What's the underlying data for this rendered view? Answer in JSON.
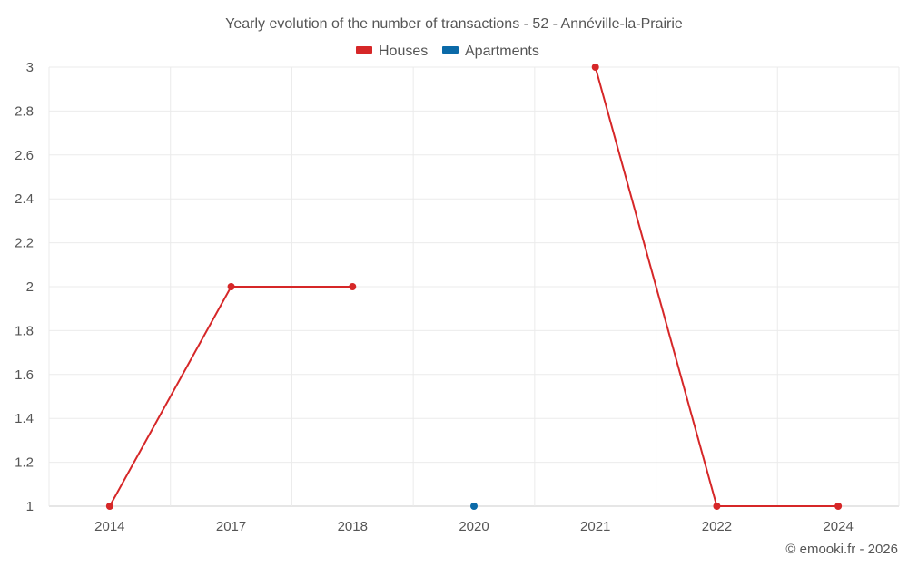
{
  "chart_data": {
    "type": "line",
    "title": "Yearly evolution of the number of transactions - 52 - Annéville-la-Prairie",
    "categories": [
      "2014",
      "2017",
      "2018",
      "2020",
      "2021",
      "2022",
      "2024"
    ],
    "series": [
      {
        "name": "Houses",
        "color": "#d62728",
        "values": [
          1,
          2,
          2,
          null,
          3,
          1,
          1
        ]
      },
      {
        "name": "Apartments",
        "color": "#0b6aa8",
        "values": [
          null,
          null,
          null,
          1,
          null,
          null,
          null
        ]
      }
    ],
    "yticks": [
      "1",
      "1.2",
      "1.4",
      "1.6",
      "1.8",
      "2",
      "2.2",
      "2.4",
      "2.6",
      "2.8",
      "3"
    ],
    "ylim": [
      1,
      3
    ],
    "grid": true,
    "legend": "top-center"
  },
  "credit": "© emooki.fr - 2026"
}
